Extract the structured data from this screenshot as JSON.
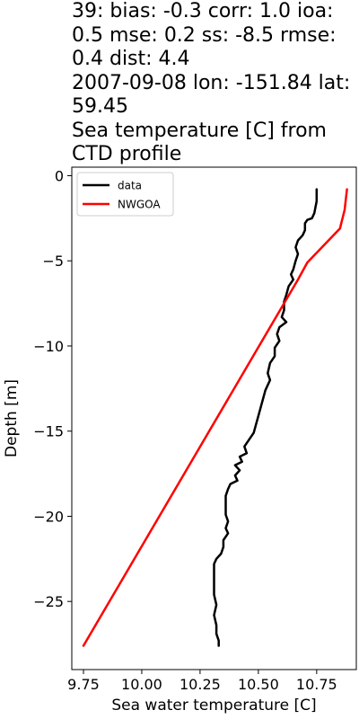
{
  "title_lines": [
    "39: bias: -0.3  corr: 1.0  ioa:",
    "0.5  mse: 0.2  ss: -8.5  rmse:",
    "0.4  dist: 4.4",
    "2007-09-08 lon: -151.84 lat:",
    "59.45",
    "Sea temperature [C] from",
    "CTD profile"
  ],
  "chart_data": {
    "type": "line",
    "title": "39: bias: -0.3  corr: 1.0  ioa: 0.5  mse: 0.2  ss: -8.5  rmse: 0.4  dist: 4.4 2007-09-08 lon: -151.84 lat: 59.45 Sea temperature [C] from CTD profile",
    "xlabel": "Sea water temperature [C]",
    "ylabel": "Depth [m]",
    "xlim": [
      9.7,
      10.92
    ],
    "ylim": [
      -29.0,
      0.5
    ],
    "xticks": [
      9.75,
      10.0,
      10.25,
      10.5,
      10.75
    ],
    "xtick_labels": [
      "9.75",
      "10.00",
      "10.25",
      "10.50",
      "10.75"
    ],
    "yticks": [
      0,
      -5,
      -10,
      -15,
      -20,
      -25
    ],
    "ytick_labels": [
      "0",
      "−5",
      "−10",
      "−15",
      "−20",
      "−25"
    ],
    "grid": false,
    "legend_position": "top-left",
    "colors": {
      "data": "#000000",
      "NWGOA": "#ff0000"
    },
    "series": [
      {
        "name": "data",
        "color": "#000000",
        "points": [
          [
            10.75,
            -0.8
          ],
          [
            10.75,
            -1.5
          ],
          [
            10.74,
            -2.2
          ],
          [
            10.73,
            -2.5
          ],
          [
            10.71,
            -2.6
          ],
          [
            10.7,
            -2.8
          ],
          [
            10.7,
            -3.2
          ],
          [
            10.69,
            -3.5
          ],
          [
            10.67,
            -3.8
          ],
          [
            10.66,
            -4.2
          ],
          [
            10.67,
            -4.6
          ],
          [
            10.66,
            -5.0
          ],
          [
            10.65,
            -5.5
          ],
          [
            10.64,
            -5.8
          ],
          [
            10.65,
            -6.1
          ],
          [
            10.63,
            -6.5
          ],
          [
            10.62,
            -7.0
          ],
          [
            10.61,
            -7.4
          ],
          [
            10.61,
            -7.9
          ],
          [
            10.6,
            -8.3
          ],
          [
            10.62,
            -8.6
          ],
          [
            10.59,
            -8.9
          ],
          [
            10.58,
            -9.3
          ],
          [
            10.59,
            -9.7
          ],
          [
            10.57,
            -10.1
          ],
          [
            10.57,
            -10.6
          ],
          [
            10.55,
            -11.0
          ],
          [
            10.54,
            -11.6
          ],
          [
            10.55,
            -12.0
          ],
          [
            10.53,
            -12.6
          ],
          [
            10.52,
            -13.1
          ],
          [
            10.51,
            -13.6
          ],
          [
            10.5,
            -14.1
          ],
          [
            10.49,
            -14.6
          ],
          [
            10.48,
            -15.1
          ],
          [
            10.46,
            -15.5
          ],
          [
            10.44,
            -15.9
          ],
          [
            10.45,
            -16.3
          ],
          [
            10.42,
            -16.5
          ],
          [
            10.43,
            -16.8
          ],
          [
            10.4,
            -17.0
          ],
          [
            10.42,
            -17.3
          ],
          [
            10.4,
            -17.6
          ],
          [
            10.41,
            -17.9
          ],
          [
            10.38,
            -18.1
          ],
          [
            10.37,
            -18.4
          ],
          [
            10.36,
            -18.8
          ],
          [
            10.36,
            -19.4
          ],
          [
            10.36,
            -19.9
          ],
          [
            10.37,
            -20.3
          ],
          [
            10.36,
            -20.7
          ],
          [
            10.37,
            -21.0
          ],
          [
            10.35,
            -21.4
          ],
          [
            10.35,
            -21.8
          ],
          [
            10.34,
            -22.2
          ],
          [
            10.32,
            -22.5
          ],
          [
            10.31,
            -22.8
          ],
          [
            10.31,
            -23.4
          ],
          [
            10.31,
            -24.0
          ],
          [
            10.31,
            -24.6
          ],
          [
            10.32,
            -25.2
          ],
          [
            10.31,
            -25.8
          ],
          [
            10.32,
            -26.4
          ],
          [
            10.32,
            -26.9
          ],
          [
            10.33,
            -27.3
          ],
          [
            10.33,
            -27.6
          ]
        ]
      },
      {
        "name": "NWGOA",
        "color": "#ff0000",
        "points": [
          [
            10.88,
            -0.8
          ],
          [
            10.87,
            -2.0
          ],
          [
            10.85,
            -3.1
          ],
          [
            10.71,
            -5.1
          ],
          [
            10.67,
            -6.1
          ],
          [
            9.75,
            -27.6
          ]
        ]
      }
    ]
  }
}
